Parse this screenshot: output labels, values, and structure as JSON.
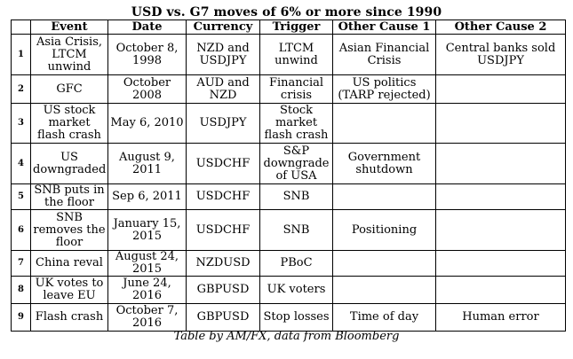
{
  "title": "USD vs. G7 moves of 6% or more since 1990",
  "caption": "Table by AM/FX, data from Bloomberg",
  "headers": [
    "",
    "Event",
    "Date",
    "Currency",
    "Trigger",
    "Other Cause 1",
    "Other Cause 2"
  ],
  "rows": [
    {
      "num": "1",
      "event": "Asia Crisis, LTCM unwind",
      "date": "October 8, 1998",
      "currency": "NZD and USDJPY",
      "trigger": "LTCM unwind",
      "cause1": "Asian Financial Crisis",
      "cause2": "Central banks sold USDJPY"
    },
    {
      "num": "2",
      "event": "GFC",
      "date": "October 2008",
      "currency": "AUD and NZD",
      "trigger": "Financial crisis",
      "cause1": "US politics (TARP rejected)",
      "cause2": ""
    },
    {
      "num": "3",
      "event": "US stock market flash crash",
      "date": "May 6, 2010",
      "currency": "USDJPY",
      "trigger": "Stock market flash crash",
      "cause1": "",
      "cause2": ""
    },
    {
      "num": "4",
      "event": "US downgraded",
      "date": "August 9, 2011",
      "currency": "USDCHF",
      "trigger": "S&P downgrade of USA",
      "cause1": "Government shutdown",
      "cause2": ""
    },
    {
      "num": "5",
      "event": "SNB puts in the floor",
      "date": "Sep 6, 2011",
      "currency": "USDCHF",
      "trigger": "SNB",
      "cause1": "",
      "cause2": ""
    },
    {
      "num": "6",
      "event": "SNB removes the floor",
      "date": "January 15, 2015",
      "currency": "USDCHF",
      "trigger": "SNB",
      "cause1": "Positioning",
      "cause2": ""
    },
    {
      "num": "7",
      "event": "China reval",
      "date": "August 24, 2015",
      "currency": "NZDUSD",
      "trigger": "PBoC",
      "cause1": "",
      "cause2": ""
    },
    {
      "num": "8",
      "event": "UK votes to leave EU",
      "date": "June 24, 2016",
      "currency": "GBPUSD",
      "trigger": "UK voters",
      "cause1": "",
      "cause2": ""
    },
    {
      "num": "9",
      "event": "Flash crash",
      "date": "October 7, 2016",
      "currency": "GBPUSD",
      "trigger": "Stop losses",
      "cause1": "Time of day",
      "cause2": "Human error"
    }
  ]
}
